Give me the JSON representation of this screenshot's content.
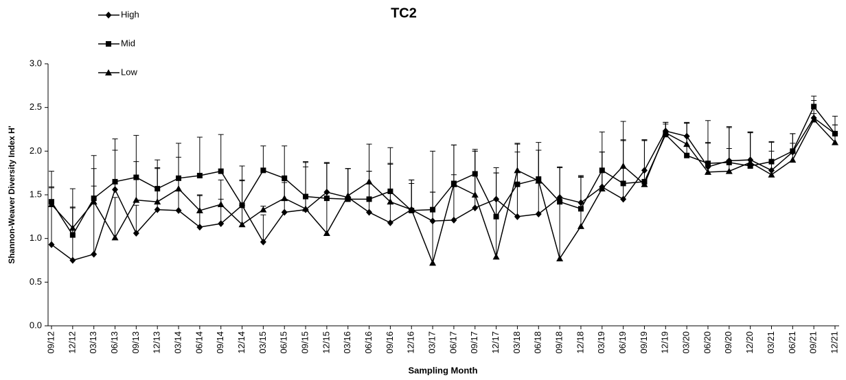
{
  "chart_data": {
    "type": "line",
    "title": "TC2",
    "x_label": "Sampling Month",
    "y_label": "Shannon-Weaver Diversity Index H'",
    "categories": [
      "09/12",
      "12/12",
      "03/13",
      "06/13",
      "09/13",
      "12/13",
      "03/14",
      "06/14",
      "09/14",
      "12/14",
      "03/15",
      "06/15",
      "09/15",
      "12/15",
      "03/16",
      "06/16",
      "09/16",
      "12/16",
      "03/17",
      "06/17",
      "09/17",
      "12/17",
      "03/18",
      "06/18",
      "09/18",
      "12/18",
      "03/19",
      "06/19",
      "09/19",
      "12/19",
      "03/20",
      "06/20",
      "09/20",
      "12/20",
      "03/21",
      "06/21",
      "09/21",
      "12/21"
    ],
    "ylim": [
      0,
      3
    ],
    "yticks": [
      {
        "value": 0,
        "label": "0.0"
      },
      {
        "value": 0.5,
        "label": "0.5"
      },
      {
        "value": 1,
        "label": "1.0"
      },
      {
        "value": 1.5,
        "label": "1.5"
      },
      {
        "value": 2,
        "label": "2.0"
      },
      {
        "value": 2.5,
        "label": "2.5"
      },
      {
        "value": 3,
        "label": "3.0"
      }
    ],
    "series": [
      {
        "name": "High",
        "color": "#000000",
        "marker": "diamond",
        "values": [
          0.93,
          0.75,
          0.82,
          1.56,
          1.06,
          1.33,
          1.32,
          1.13,
          1.17,
          1.38,
          0.96,
          1.3,
          1.33,
          1.53,
          1.47,
          1.3,
          1.18,
          1.33,
          1.2,
          1.21,
          1.35,
          1.45,
          1.25,
          1.28,
          1.47,
          1.41,
          1.59,
          1.45,
          1.78,
          2.23,
          2.17,
          1.82,
          1.89,
          1.9,
          1.78,
          1.99,
          2.38,
          2.2
        ],
        "errors": [
          0.65,
          0.6,
          0.78,
          0.45,
          0.32,
          0.48,
          0.36,
          0.37,
          0.28,
          0.29,
          0.31,
          0.34,
          0.49,
          0.33,
          0.33,
          0.47,
          0.67,
          0.3,
          0.33,
          0.52,
          0.65,
          0.3,
          0.74,
          0.73,
          0.34,
          0.3,
          0.4,
          0.68,
          0.35,
          0.08,
          0.15,
          0.28,
          0.39,
          0.32,
          0.22,
          0.1,
          0.05,
          0.1
        ]
      },
      {
        "name": "Mid",
        "color": "#000000",
        "marker": "square",
        "values": [
          1.42,
          1.04,
          1.46,
          1.65,
          1.7,
          1.57,
          1.69,
          1.72,
          1.77,
          1.38,
          1.78,
          1.69,
          1.48,
          1.46,
          1.45,
          1.45,
          1.54,
          1.32,
          1.33,
          1.63,
          1.74,
          1.25,
          1.62,
          1.68,
          1.42,
          1.34,
          1.78,
          1.63,
          1.65,
          2.19,
          1.95,
          1.86,
          1.87,
          1.83,
          1.88,
          2.0,
          2.51,
          2.2
        ],
        "errors": [
          0.35,
          0.53,
          0.49,
          0.49,
          0.48,
          0.33,
          0.4,
          0.44,
          0.42,
          0.45,
          0.28,
          0.37,
          0.39,
          0.41,
          0.35,
          0.63,
          0.5,
          0.35,
          0.67,
          0.44,
          0.28,
          0.56,
          0.46,
          0.42,
          0.4,
          0.38,
          0.44,
          0.71,
          0.48,
          0.14,
          0.37,
          0.49,
          0.4,
          0.39,
          0.23,
          0.2,
          0.12,
          0.2
        ]
      },
      {
        "name": "Low",
        "color": "#000000",
        "marker": "triangle",
        "values": [
          1.39,
          1.12,
          1.42,
          1.01,
          1.44,
          1.42,
          1.57,
          1.32,
          1.39,
          1.16,
          1.33,
          1.46,
          1.34,
          1.06,
          1.49,
          1.65,
          1.42,
          1.33,
          0.72,
          1.62,
          1.5,
          0.79,
          1.78,
          1.66,
          0.77,
          1.14,
          1.57,
          1.83,
          1.62,
          2.21,
          2.08,
          1.76,
          1.77,
          1.87,
          1.73,
          1.9,
          2.36,
          2.1
        ],
        "errors": [
          0.2,
          0.24,
          0.38,
          0.46,
          0.44,
          0.38,
          0.36,
          0.17,
          0.28,
          0.5,
          0.04,
          0.2,
          0.54,
          0.8,
          0.31,
          0.12,
          0.44,
          0.34,
          0.81,
          0.45,
          0.5,
          0.96,
          0.31,
          0.35,
          1.04,
          0.56,
          0.42,
          0.29,
          0.5,
          0.12,
          0.25,
          0.33,
          0.26,
          0.34,
          0.37,
          0.3,
          0.22,
          0.2
        ]
      }
    ]
  }
}
